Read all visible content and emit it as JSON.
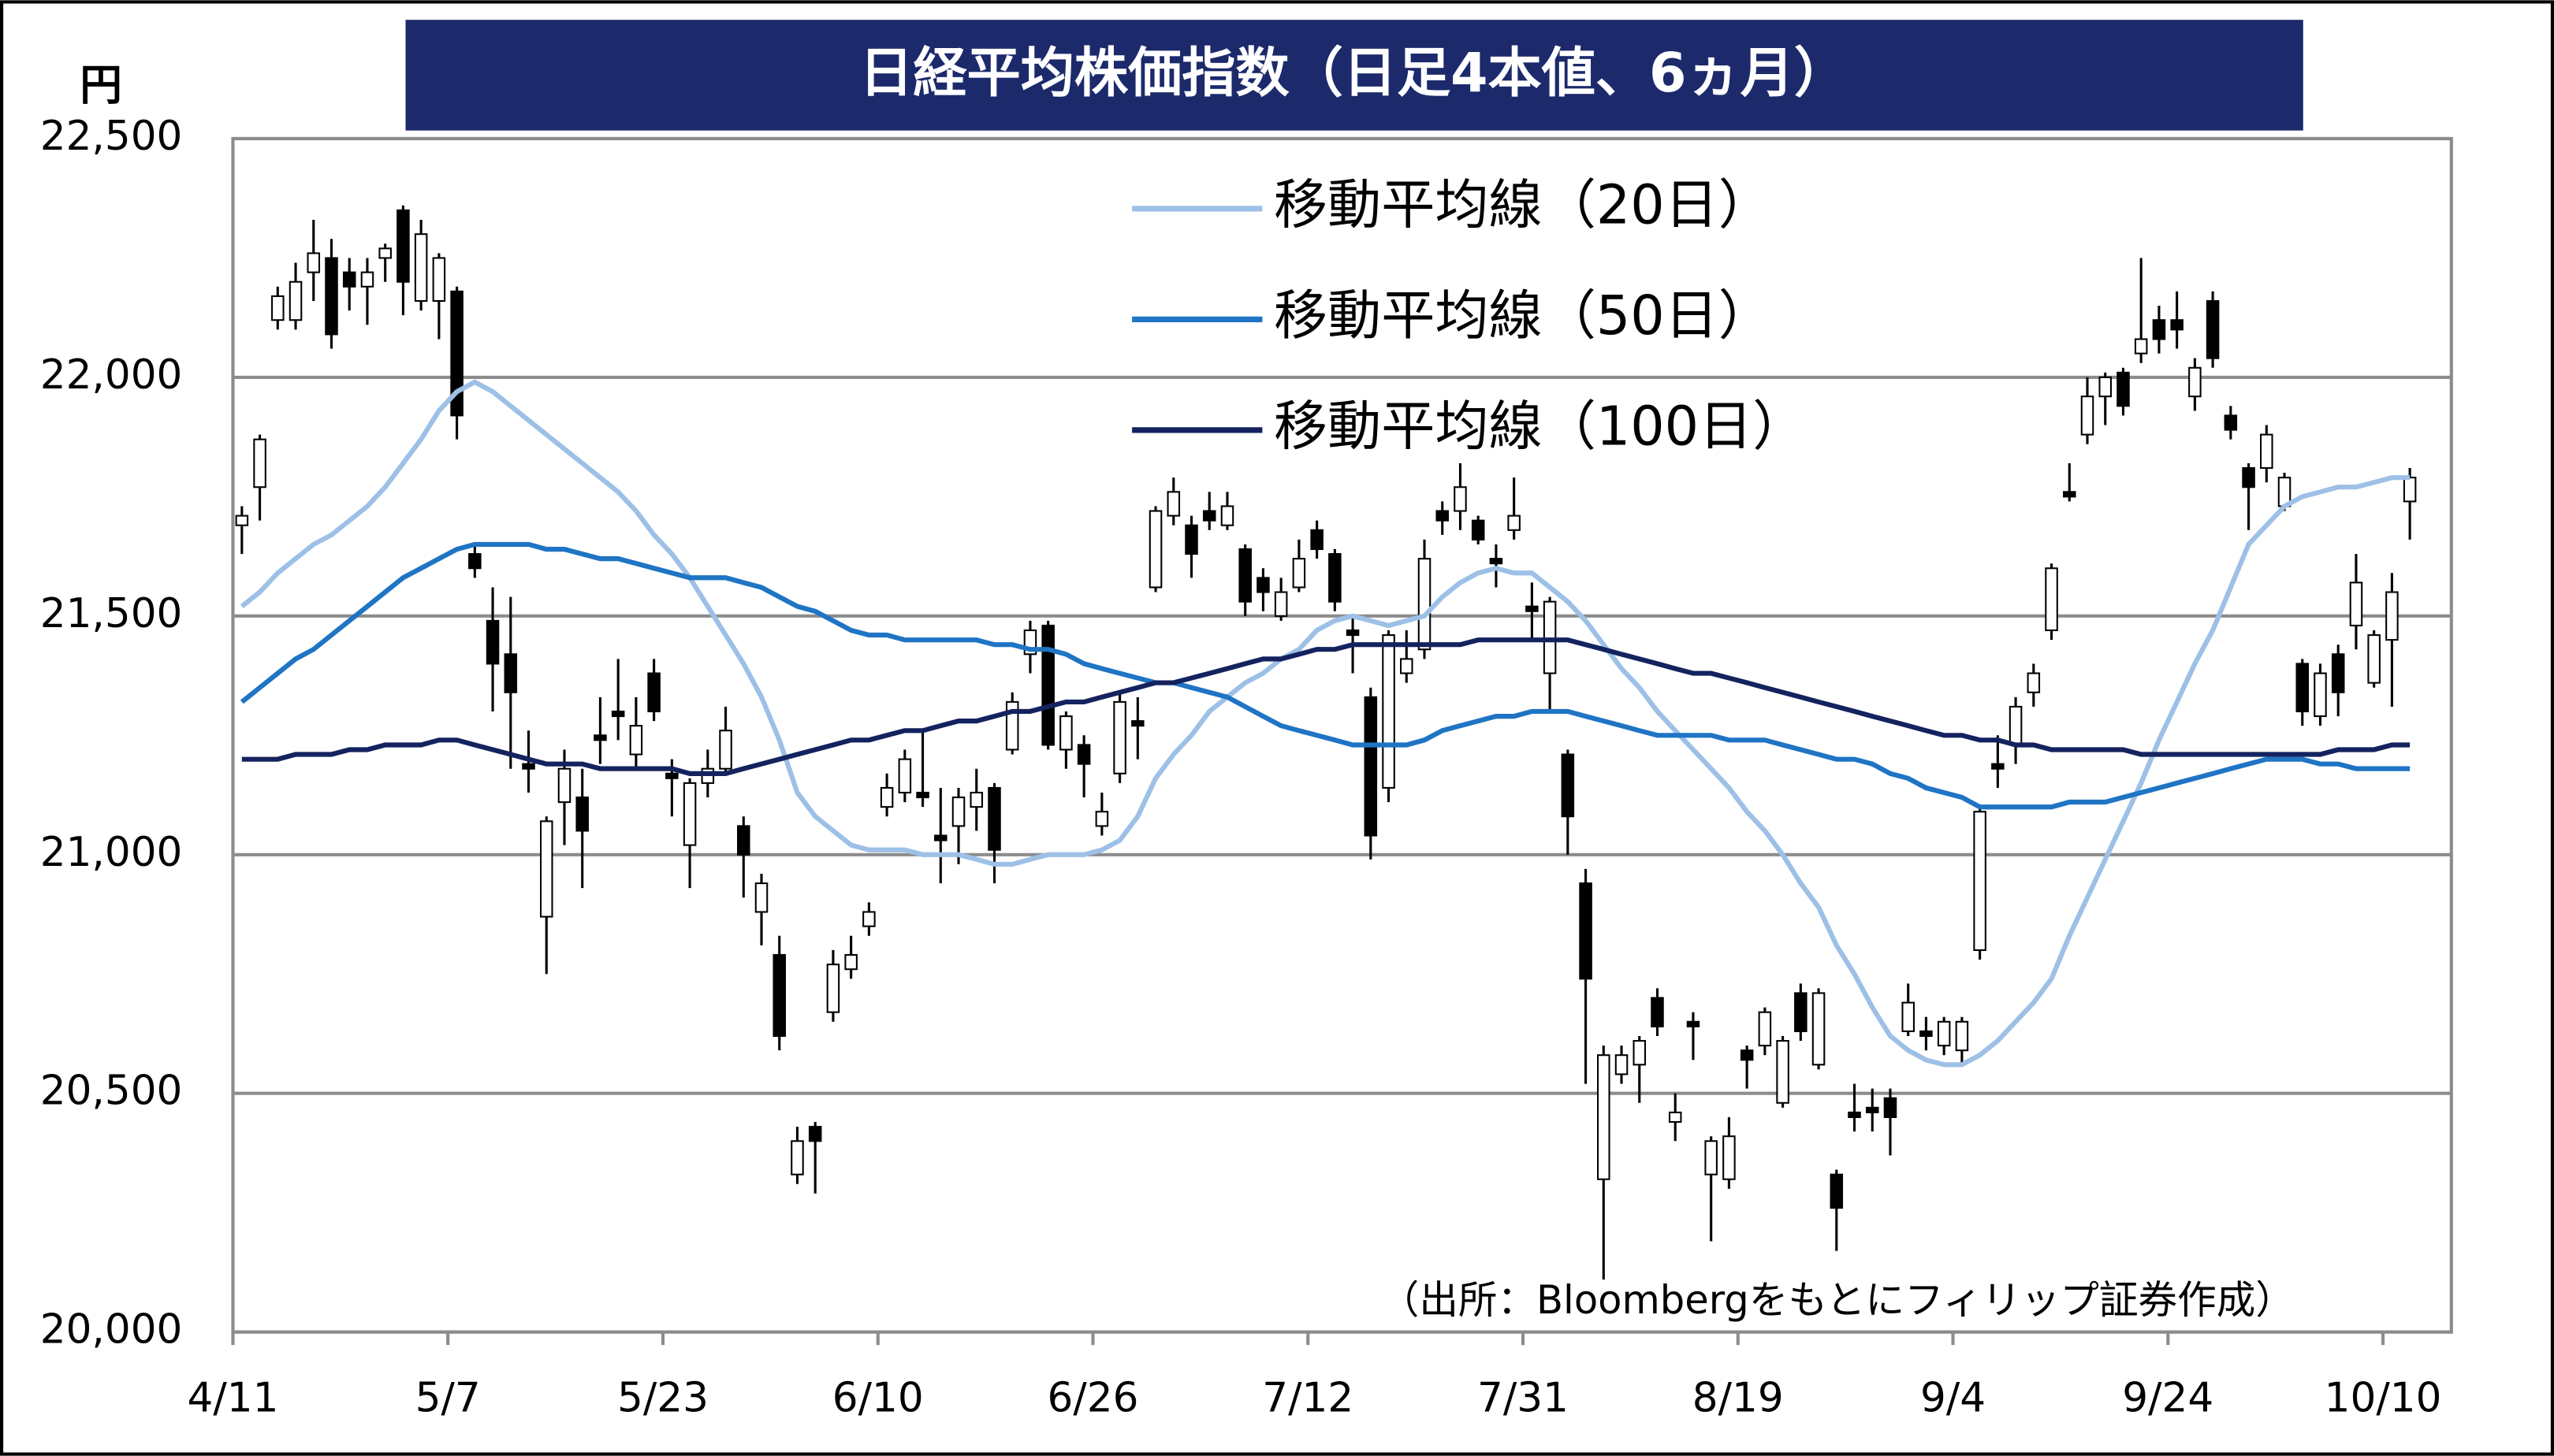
{
  "chart_data": {
    "type": "candlestick",
    "title": "日経平均株価指数（日足4本値、6ヵ月）",
    "y_label": "円",
    "source": "（出所：Bloombergをもとにフィリップ証券作成）",
    "categories": [
      "4/11",
      null,
      null,
      null,
      null,
      null,
      null,
      null,
      null,
      null,
      null,
      null,
      "5/7",
      null,
      null,
      null,
      null,
      null,
      null,
      null,
      null,
      null,
      null,
      null,
      "5/23",
      null,
      null,
      null,
      null,
      null,
      null,
      null,
      null,
      null,
      null,
      null,
      "6/10",
      null,
      null,
      null,
      null,
      null,
      null,
      null,
      null,
      null,
      null,
      null,
      "6/26",
      null,
      null,
      null,
      null,
      null,
      null,
      null,
      null,
      null,
      null,
      null,
      "7/12",
      null,
      null,
      null,
      null,
      null,
      null,
      null,
      null,
      null,
      null,
      null,
      "7/31",
      null,
      null,
      null,
      null,
      null,
      null,
      null,
      null,
      null,
      null,
      null,
      "8/19",
      null,
      null,
      null,
      null,
      null,
      null,
      null,
      null,
      null,
      null,
      null,
      "9/4",
      null,
      null,
      null,
      null,
      null,
      null,
      null,
      null,
      null,
      null,
      null,
      "9/24",
      null,
      null,
      null,
      null,
      null,
      null,
      null,
      null,
      null,
      null,
      null,
      "10/10",
      null
    ],
    "open": [
      21690,
      21770,
      22120,
      22120,
      22220,
      22250,
      22220,
      22190,
      22250,
      22350,
      22160,
      22160,
      22180,
      21630,
      21490,
      21420,
      21190,
      20870,
      21110,
      21120,
      21250,
      21300,
      21210,
      21380,
      21170,
      21020,
      21150,
      21180,
      21060,
      20880,
      20790,
      20330,
      20430,
      20670,
      20760,
      20850,
      21100,
      21130,
      21130,
      21040,
      21060,
      21100,
      21140,
      21220,
      21420,
      21480,
      21220,
      21230,
      21060,
      21170,
      21280,
      21560,
      21710,
      21690,
      21720,
      21690,
      21640,
      21580,
      21500,
      21560,
      21680,
      21630,
      21470,
      21330,
      21140,
      21380,
      21430,
      21720,
      21720,
      21700,
      21620,
      21680,
      21520,
      21380,
      21210,
      20940,
      20320,
      20540,
      20560,
      20700,
      20440,
      20650,
      20330,
      20320,
      20590,
      20600,
      20480,
      20710,
      20560,
      20330,
      20460,
      20470,
      20490,
      20630,
      20630,
      20600,
      20590,
      20800,
      21190,
      21230,
      21340,
      21470,
      21760,
      21880,
      21960,
      22010,
      22050,
      22120,
      22120,
      21960,
      22160,
      21920,
      21810,
      21810,
      21730,
      21400,
      21290,
      21420,
      21480,
      21360,
      21450,
      21740
    ],
    "high": [
      21730,
      21880,
      22190,
      22240,
      22330,
      22290,
      22250,
      22250,
      22280,
      22360,
      22330,
      22260,
      22190,
      21650,
      21560,
      21540,
      21260,
      21080,
      21220,
      21180,
      21330,
      21410,
      21330,
      21410,
      21200,
      21160,
      21220,
      21310,
      21080,
      20960,
      20830,
      20430,
      20440,
      20800,
      20830,
      20900,
      21170,
      21220,
      21260,
      21140,
      21140,
      21180,
      21150,
      21340,
      21490,
      21490,
      21300,
      21250,
      21130,
      21340,
      21330,
      21730,
      21790,
      21710,
      21760,
      21760,
      21650,
      21600,
      21580,
      21660,
      21700,
      21640,
      21500,
      21350,
      21470,
      21470,
      21660,
      21740,
      21820,
      21710,
      21650,
      21790,
      21570,
      21540,
      21220,
      20970,
      20600,
      20600,
      20620,
      20720,
      20500,
      20670,
      20410,
      20450,
      20600,
      20680,
      20620,
      20730,
      20720,
      20340,
      20520,
      20510,
      20510,
      20730,
      20660,
      20660,
      20660,
      21100,
      21250,
      21330,
      21400,
      21610,
      21820,
      22000,
      22010,
      22020,
      22250,
      22150,
      22180,
      22040,
      22180,
      21940,
      21820,
      21900,
      21800,
      21410,
      21400,
      21440,
      21630,
      21470,
      21590,
      21810
    ],
    "low": [
      21630,
      21700,
      22100,
      22100,
      22160,
      22060,
      22140,
      22110,
      22200,
      22130,
      22140,
      22080,
      21870,
      21580,
      21300,
      21180,
      21130,
      20750,
      21020,
      20930,
      21190,
      21240,
      21180,
      21280,
      21080,
      20930,
      21120,
      21170,
      20910,
      20810,
      20590,
      20310,
      20290,
      20650,
      20740,
      20830,
      21080,
      21110,
      21100,
      20940,
      20980,
      21050,
      20940,
      21210,
      21380,
      21220,
      21180,
      21120,
      21040,
      21150,
      21200,
      21550,
      21690,
      21580,
      21680,
      21680,
      21500,
      21510,
      21490,
      21550,
      21620,
      21510,
      21380,
      20990,
      21110,
      21360,
      21410,
      21670,
      21680,
      21650,
      21560,
      21660,
      21450,
      21300,
      21000,
      20520,
      20110,
      20520,
      20480,
      20620,
      20400,
      20570,
      20190,
      20300,
      20510,
      20580,
      20470,
      20610,
      20550,
      20170,
      20420,
      20420,
      20370,
      20620,
      20590,
      20580,
      20560,
      20780,
      21140,
      21190,
      21310,
      21450,
      21740,
      21860,
      21900,
      21920,
      22030,
      22050,
      22060,
      21930,
      22020,
      21870,
      21680,
      21780,
      21720,
      21270,
      21270,
      21290,
      21430,
      21350,
      21310,
      21660
    ],
    "close": [
      21710,
      21870,
      22170,
      22200,
      22260,
      22090,
      22190,
      22220,
      22270,
      22200,
      22300,
      22250,
      21920,
      21600,
      21400,
      21340,
      21180,
      21070,
      21180,
      21050,
      21240,
      21290,
      21270,
      21300,
      21160,
      21150,
      21180,
      21260,
      21000,
      20940,
      20620,
      20400,
      20400,
      20770,
      20790,
      20880,
      21140,
      21200,
      21120,
      21030,
      21120,
      21130,
      21010,
      21320,
      21470,
      21230,
      21290,
      21190,
      21090,
      21320,
      21270,
      21720,
      21760,
      21630,
      21700,
      21730,
      21530,
      21550,
      21550,
      21620,
      21640,
      21530,
      21460,
      21040,
      21460,
      21410,
      21620,
      21700,
      21770,
      21660,
      21610,
      21710,
      21510,
      21530,
      21080,
      20740,
      20580,
      20580,
      20610,
      20640,
      20460,
      20640,
      20400,
      20410,
      20570,
      20670,
      20610,
      20630,
      20710,
      20260,
      20450,
      20460,
      20450,
      20690,
      20620,
      20650,
      20650,
      21090,
      21180,
      21310,
      21380,
      21600,
      21750,
      21960,
      22000,
      21940,
      22080,
      22080,
      22100,
      22020,
      22040,
      21890,
      21770,
      21880,
      21790,
      21300,
      21380,
      21340,
      21570,
      21460,
      21550,
      21790
    ],
    "up_color": "#ffffff",
    "down_color": "#000000",
    "series": [
      {
        "name": "移動平均線（20日）",
        "color": "#9dc0e6",
        "values": [
          21520,
          21550,
          21590,
          21620,
          21650,
          21670,
          21700,
          21730,
          21770,
          21820,
          21870,
          21930,
          21970,
          21990,
          21970,
          21940,
          21910,
          21880,
          21850,
          21820,
          21790,
          21760,
          21720,
          21670,
          21630,
          21580,
          21520,
          21460,
          21400,
          21330,
          21240,
          21130,
          21080,
          21050,
          21020,
          21010,
          21010,
          21010,
          21000,
          21000,
          21000,
          20990,
          20980,
          20980,
          20990,
          21000,
          21000,
          21000,
          21010,
          21030,
          21080,
          21160,
          21210,
          21250,
          21300,
          21330,
          21360,
          21380,
          21410,
          21430,
          21470,
          21490,
          21500,
          21490,
          21480,
          21490,
          21500,
          21540,
          21570,
          21590,
          21600,
          21590,
          21590,
          21560,
          21530,
          21490,
          21440,
          21390,
          21350,
          21300,
          21260,
          21220,
          21180,
          21140,
          21090,
          21050,
          21000,
          20940,
          20890,
          20810,
          20750,
          20680,
          20620,
          20590,
          20570,
          20560,
          20560,
          20580,
          20610,
          20650,
          20690,
          20740,
          20830,
          20910,
          20990,
          21070,
          21150,
          21240,
          21320,
          21400,
          21470,
          21560,
          21650,
          21690,
          21730,
          21750,
          21760,
          21770,
          21770,
          21780,
          21790,
          21790
        ]
      },
      {
        "name": "移動平均線（50日）",
        "color": "#1f74c4",
        "values": [
          21320,
          21350,
          21380,
          21410,
          21430,
          21460,
          21490,
          21520,
          21550,
          21580,
          21600,
          21620,
          21640,
          21650,
          21650,
          21650,
          21650,
          21640,
          21640,
          21630,
          21620,
          21620,
          21610,
          21600,
          21590,
          21580,
          21580,
          21580,
          21570,
          21560,
          21540,
          21520,
          21510,
          21490,
          21470,
          21460,
          21460,
          21450,
          21450,
          21450,
          21450,
          21450,
          21440,
          21440,
          21430,
          21430,
          21420,
          21400,
          21390,
          21380,
          21370,
          21360,
          21360,
          21350,
          21340,
          21330,
          21310,
          21290,
          21270,
          21260,
          21250,
          21240,
          21230,
          21230,
          21230,
          21230,
          21240,
          21260,
          21270,
          21280,
          21290,
          21290,
          21300,
          21300,
          21300,
          21290,
          21280,
          21270,
          21260,
          21250,
          21250,
          21250,
          21250,
          21240,
          21240,
          21240,
          21230,
          21220,
          21210,
          21200,
          21200,
          21190,
          21170,
          21160,
          21140,
          21130,
          21120,
          21100,
          21100,
          21100,
          21100,
          21100,
          21110,
          21110,
          21110,
          21120,
          21130,
          21140,
          21150,
          21160,
          21170,
          21180,
          21190,
          21200,
          21200,
          21200,
          21190,
          21190,
          21180,
          21180,
          21180,
          21180
        ]
      },
      {
        "name": "移動平均線（100日）",
        "color": "#14235f",
        "values": [
          21200,
          21200,
          21200,
          21210,
          21210,
          21210,
          21220,
          21220,
          21230,
          21230,
          21230,
          21240,
          21240,
          21230,
          21220,
          21210,
          21200,
          21190,
          21190,
          21190,
          21180,
          21180,
          21180,
          21180,
          21180,
          21170,
          21170,
          21170,
          21180,
          21190,
          21200,
          21210,
          21220,
          21230,
          21240,
          21240,
          21250,
          21260,
          21260,
          21270,
          21280,
          21280,
          21290,
          21300,
          21300,
          21310,
          21320,
          21320,
          21330,
          21340,
          21350,
          21360,
          21360,
          21370,
          21380,
          21390,
          21400,
          21410,
          21410,
          21420,
          21430,
          21430,
          21440,
          21440,
          21440,
          21440,
          21440,
          21440,
          21440,
          21450,
          21450,
          21450,
          21450,
          21450,
          21450,
          21440,
          21430,
          21420,
          21410,
          21400,
          21390,
          21380,
          21380,
          21370,
          21360,
          21350,
          21340,
          21330,
          21320,
          21310,
          21300,
          21290,
          21280,
          21270,
          21260,
          21250,
          21250,
          21240,
          21240,
          21230,
          21230,
          21220,
          21220,
          21220,
          21220,
          21220,
          21210,
          21210,
          21210,
          21210,
          21210,
          21210,
          21210,
          21210,
          21210,
          21210,
          21210,
          21220,
          21220,
          21220,
          21230,
          21230
        ]
      }
    ],
    "ylim": [
      20000,
      22500
    ],
    "yticks": [
      {
        "value": 20000,
        "label": "20,000"
      },
      {
        "value": 20500,
        "label": "20,500"
      },
      {
        "value": 21000,
        "label": "21,000"
      },
      {
        "value": 21500,
        "label": "21,500"
      },
      {
        "value": 22000,
        "label": "22,000"
      },
      {
        "value": 22500,
        "label": "22,500"
      }
    ],
    "grid": true
  }
}
